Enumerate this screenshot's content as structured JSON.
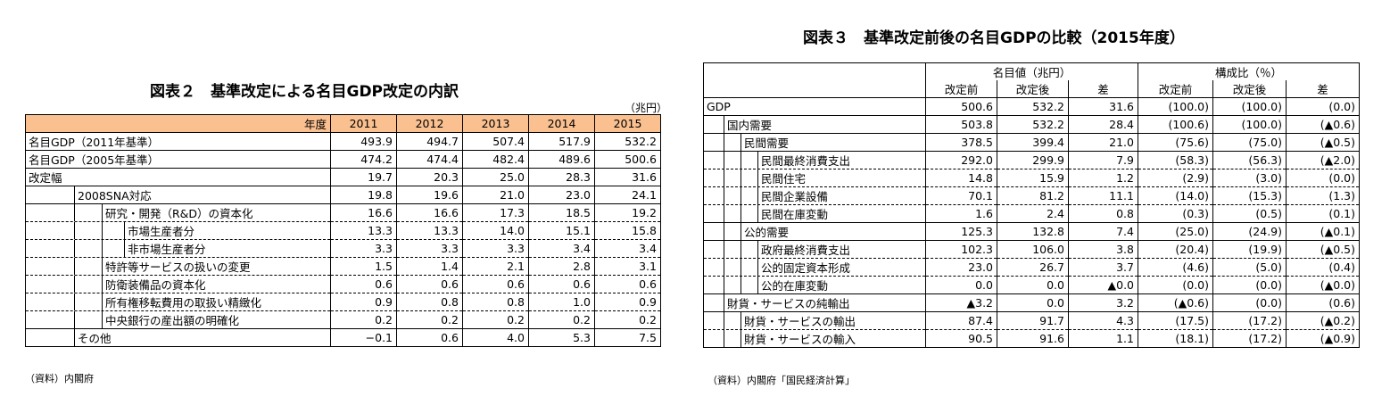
{
  "table2": {
    "title": "図表２　基準改定による名目GDP改定の内訳",
    "unit": "（兆円）",
    "year_label": "年度",
    "years": [
      "2011",
      "2012",
      "2013",
      "2014",
      "2015"
    ],
    "rows": [
      {
        "label": "名目GDP（2011年基準）",
        "level": 0,
        "values": [
          "493.9",
          "494.7",
          "507.4",
          "517.9",
          "532.2"
        ]
      },
      {
        "label": "名目GDP（2005年基準）",
        "level": 0,
        "values": [
          "474.2",
          "474.4",
          "482.4",
          "489.6",
          "500.6"
        ]
      },
      {
        "label": "改定幅",
        "level": 0,
        "values": [
          "19.7",
          "20.3",
          "25.0",
          "28.3",
          "31.6"
        ]
      },
      {
        "label": "2008SNA対応",
        "level": 1,
        "values": [
          "19.8",
          "19.6",
          "21.0",
          "23.0",
          "24.1"
        ]
      },
      {
        "label": "研究・開発（R&D）の資本化",
        "level": 2,
        "values": [
          "16.6",
          "16.6",
          "17.3",
          "18.5",
          "19.2"
        ]
      },
      {
        "label": "市場生産者分",
        "level": 3,
        "values": [
          "13.3",
          "13.3",
          "14.0",
          "15.1",
          "15.8"
        ]
      },
      {
        "label": "非市場生産者分",
        "level": 3,
        "values": [
          "3.3",
          "3.3",
          "3.3",
          "3.4",
          "3.4"
        ]
      },
      {
        "label": "特許等サービスの扱いの変更",
        "level": 2,
        "values": [
          "1.5",
          "1.4",
          "2.1",
          "2.8",
          "3.1"
        ]
      },
      {
        "label": "防衛装備品の資本化",
        "level": 2,
        "values": [
          "0.6",
          "0.6",
          "0.6",
          "0.6",
          "0.6"
        ]
      },
      {
        "label": "所有権移転費用の取扱い精緻化",
        "level": 2,
        "values": [
          "0.9",
          "0.8",
          "0.8",
          "1.0",
          "0.9"
        ]
      },
      {
        "label": "中央銀行の産出額の明確化",
        "level": 2,
        "values": [
          "0.2",
          "0.2",
          "0.2",
          "0.2",
          "0.2"
        ]
      },
      {
        "label": "その他",
        "level": 1,
        "values": [
          "−0.1",
          "0.6",
          "4.0",
          "5.3",
          "7.5"
        ]
      }
    ],
    "source": "（資料）内閣府",
    "header_color": "#fac090"
  },
  "table3": {
    "title": "図表３　基準改定前後の名目GDPの比較（2015年度）",
    "group1": "名目値（兆円）",
    "group2": "構成比（％）",
    "subheaders": [
      "改定前",
      "改定後",
      "差",
      "改定前",
      "改定後",
      "差"
    ],
    "rows": [
      {
        "label": "GDP",
        "level": 0,
        "values": [
          "500.6",
          "532.2",
          "31.6",
          "(100.0)",
          "(100.0)",
          "(0.0)"
        ]
      },
      {
        "label": "国内需要",
        "level": 1,
        "values": [
          "503.8",
          "532.2",
          "28.4",
          "(100.6)",
          "(100.0)",
          "(▲0.6)"
        ]
      },
      {
        "label": "民間需要",
        "level": 2,
        "values": [
          "378.5",
          "399.4",
          "21.0",
          "(75.6)",
          "(75.0)",
          "(▲0.5)"
        ]
      },
      {
        "label": "民間最終消費支出",
        "level": 3,
        "values": [
          "292.0",
          "299.9",
          "7.9",
          "(58.3)",
          "(56.3)",
          "(▲2.0)"
        ]
      },
      {
        "label": "民間住宅",
        "level": 3,
        "values": [
          "14.8",
          "15.9",
          "1.2",
          "(2.9)",
          "(3.0)",
          "(0.0)"
        ]
      },
      {
        "label": "民間企業設備",
        "level": 3,
        "values": [
          "70.1",
          "81.2",
          "11.1",
          "(14.0)",
          "(15.3)",
          "(1.3)"
        ]
      },
      {
        "label": "民間在庫変動",
        "level": 3,
        "values": [
          "1.6",
          "2.4",
          "0.8",
          "(0.3)",
          "(0.5)",
          "(0.1)"
        ]
      },
      {
        "label": "公的需要",
        "level": 2,
        "values": [
          "125.3",
          "132.8",
          "7.4",
          "(25.0)",
          "(24.9)",
          "(▲0.1)"
        ]
      },
      {
        "label": "政府最終消費支出",
        "level": 3,
        "values": [
          "102.3",
          "106.0",
          "3.8",
          "(20.4)",
          "(19.9)",
          "(▲0.5)"
        ]
      },
      {
        "label": "公的固定資本形成",
        "level": 3,
        "values": [
          "23.0",
          "26.7",
          "3.7",
          "(4.6)",
          "(5.0)",
          "(0.4)"
        ]
      },
      {
        "label": "公的在庫変動",
        "level": 3,
        "values": [
          "0.0",
          "0.0",
          "▲0.0",
          "(0.0)",
          "(0.0)",
          "(▲0.0)"
        ]
      },
      {
        "label": "財貨・サービスの純輸出",
        "level": 1,
        "values": [
          "▲3.2",
          "0.0",
          "3.2",
          "(▲0.6)",
          "(0.0)",
          "(0.6)"
        ]
      },
      {
        "label": "財貨・サービスの輸出",
        "level": 2,
        "values": [
          "87.4",
          "91.7",
          "4.3",
          "(17.5)",
          "(17.2)",
          "(▲0.2)"
        ]
      },
      {
        "label": "財貨・サービスの輸入",
        "level": 2,
        "values": [
          "90.5",
          "91.6",
          "1.1",
          "(18.1)",
          "(17.2)",
          "(▲0.9)"
        ]
      }
    ],
    "source": "（資料）内閣府「国民経済計算」"
  }
}
